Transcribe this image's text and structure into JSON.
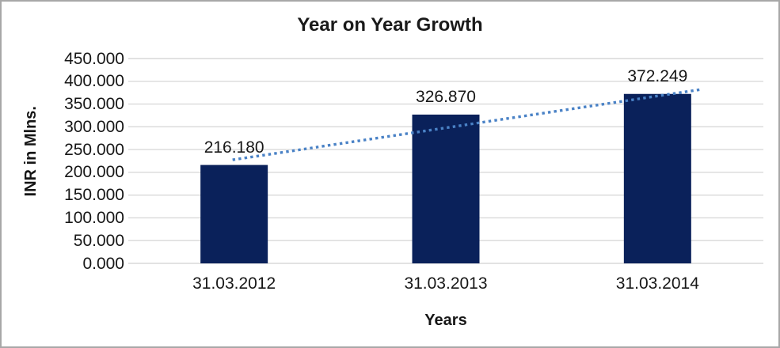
{
  "window": {
    "background": "#ffffff",
    "border_color": "#a8a8a8"
  },
  "chart_data": {
    "type": "bar",
    "title": "Year on Year Growth",
    "xlabel": "Years",
    "ylabel": "INR in Mlns.",
    "categories": [
      "31.03.2012",
      "31.03.2013",
      "31.03.2014"
    ],
    "series": [
      {
        "name": "INR in Mlns.",
        "values": [
          216.18,
          326.87,
          372.249
        ]
      }
    ],
    "data_labels": [
      "216.180",
      "326.870",
      "372.249"
    ],
    "y_ticks": [
      "450.000",
      "400.000",
      "350.000",
      "300.000",
      "250.000",
      "200.000",
      "150.000",
      "100.000",
      "50.000",
      "0.000"
    ],
    "ylim": [
      0,
      450
    ],
    "grid": true,
    "legend": "none",
    "bar_color": "#0a215a",
    "gridline_color": "#d9d9d9",
    "text_color": "#171717",
    "trendline": {
      "type": "linear",
      "style": "dotted",
      "color": "#4a82c6",
      "start_value": 227.5,
      "end_value": 382.0
    }
  }
}
